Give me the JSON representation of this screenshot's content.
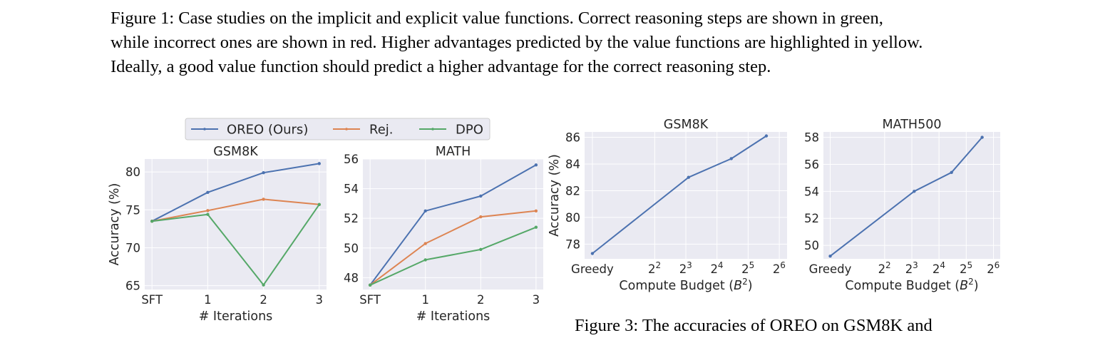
{
  "caption_fig1": {
    "line1": "Figure 1: Case studies on the implicit and explicit value functions. Correct reasoning steps are shown in green,",
    "line2": "while incorrect ones are shown in red. Higher advantages predicted by the value functions are highlighted in yellow.",
    "line3": "Ideally, a good value function should predict a higher advantage for the correct reasoning step."
  },
  "caption_fig3_fragment": "Figure 3: The accuracies of OREO on GSM8K and",
  "legend": {
    "entries": [
      {
        "label": "OREO (Ours)",
        "color": "#4c72b0"
      },
      {
        "label": "Rej.",
        "color": "#dd8452"
      },
      {
        "label": "DPO",
        "color": "#55a868"
      }
    ]
  },
  "chart_data": [
    {
      "type": "line",
      "title": "GSM8K",
      "xlabel": "# Iterations",
      "ylabel": "Accuracy (%)",
      "categories": [
        "SFT",
        "1",
        "2",
        "3"
      ],
      "yticks": [
        65,
        70,
        75,
        80
      ],
      "ylim": [
        64.5,
        81.7
      ],
      "grid": true,
      "series": [
        {
          "name": "OREO (Ours)",
          "color": "#4c72b0",
          "values": [
            73.5,
            77.3,
            79.9,
            81.1
          ]
        },
        {
          "name": "Rej.",
          "color": "#dd8452",
          "values": [
            73.5,
            74.9,
            76.4,
            75.7
          ]
        },
        {
          "name": "DPO",
          "color": "#55a868",
          "values": [
            73.5,
            74.4,
            65.1,
            75.7
          ]
        }
      ]
    },
    {
      "type": "line",
      "title": "MATH",
      "xlabel": "# Iterations",
      "ylabel": "",
      "categories": [
        "SFT",
        "1",
        "2",
        "3"
      ],
      "yticks": [
        48,
        50,
        52,
        54,
        56
      ],
      "ylim": [
        47.2,
        56.0
      ],
      "grid": true,
      "series": [
        {
          "name": "OREO (Ours)",
          "color": "#4c72b0",
          "values": [
            47.5,
            52.5,
            53.5,
            55.6
          ]
        },
        {
          "name": "Rej.",
          "color": "#dd8452",
          "values": [
            47.5,
            50.3,
            52.1,
            52.5
          ]
        },
        {
          "name": "DPO",
          "color": "#55a868",
          "values": [
            47.5,
            49.2,
            49.9,
            51.4
          ]
        }
      ]
    },
    {
      "type": "line",
      "title": "GSM8K",
      "xlabel": "Compute Budget (B²)",
      "ylabel": "Accuracy (%)",
      "xscale": "log2",
      "xtick_labels": [
        "Greedy",
        "2²",
        "2³",
        "2⁴",
        "2⁵",
        "2⁶"
      ],
      "xtick_exponents": [
        null,
        2,
        3,
        4,
        5,
        6
      ],
      "yticks": [
        78,
        80,
        82,
        84,
        86
      ],
      "ylim": [
        76.9,
        86.4
      ],
      "grid": true,
      "series": [
        {
          "name": "OREO (Ours)",
          "color": "#4c72b0",
          "x": [
            1,
            8.5,
            22,
            48
          ],
          "values": [
            77.3,
            83.0,
            84.4,
            86.1
          ]
        }
      ]
    },
    {
      "type": "line",
      "title": "MATH500",
      "xlabel": "Compute Budget (B²)",
      "ylabel": "",
      "xscale": "log2",
      "xtick_labels": [
        "Greedy",
        "2²",
        "2³",
        "2⁴",
        "2⁵",
        "2⁶"
      ],
      "xtick_exponents": [
        null,
        2,
        3,
        4,
        5,
        6
      ],
      "yticks": [
        50,
        52,
        54,
        56,
        58
      ],
      "ylim": [
        49.0,
        58.4
      ],
      "grid": true,
      "series": [
        {
          "name": "OREO (Ours)",
          "color": "#4c72b0",
          "x": [
            1,
            8.5,
            22,
            48
          ],
          "values": [
            49.2,
            54.0,
            55.4,
            58.0
          ]
        }
      ]
    }
  ]
}
